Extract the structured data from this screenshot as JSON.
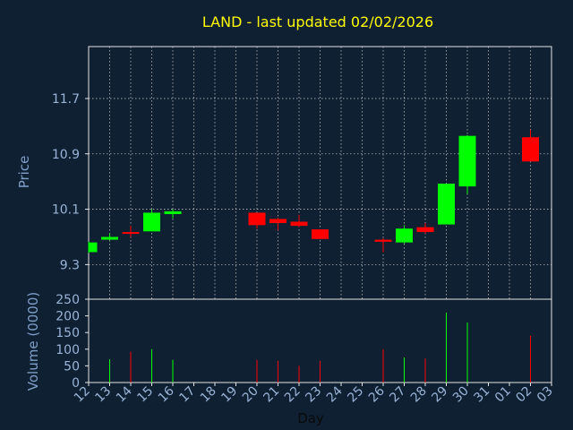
{
  "chart_data": {
    "type": "candlestick",
    "title": "LAND - last updated 02/02/2026",
    "xlabel": "Day",
    "price_panel": {
      "ylabel": "Price",
      "yticks": [
        9.3,
        10.1,
        10.9,
        11.7
      ],
      "ylim": [
        8.8,
        12.45
      ],
      "grid": true
    },
    "volume_panel": {
      "ylabel": "Volume (0000)",
      "yticks": [
        0,
        50,
        100,
        150,
        200,
        250
      ],
      "ylim": [
        0,
        250
      ],
      "grid": false
    },
    "x_ticks": [
      "12",
      "13",
      "14",
      "15",
      "16",
      "17",
      "18",
      "19",
      "20",
      "21",
      "22",
      "23",
      "24",
      "25",
      "26",
      "27",
      "28",
      "29",
      "30",
      "31",
      "01",
      "02",
      "03"
    ],
    "up_color": "#00ff00",
    "down_color": "#ff0000",
    "candles": [
      {
        "x": "12",
        "open": 9.48,
        "close": 9.62,
        "high": 9.63,
        "low": 9.47,
        "volume": 0
      },
      {
        "x": "13",
        "open": 9.66,
        "close": 9.7,
        "high": 9.75,
        "low": 9.65,
        "volume": 70
      },
      {
        "x": "14",
        "open": 9.77,
        "close": 9.75,
        "high": 9.86,
        "low": 9.7,
        "volume": 92
      },
      {
        "x": "15",
        "open": 9.78,
        "close": 10.05,
        "high": 10.1,
        "low": 9.78,
        "volume": 100
      },
      {
        "x": "16",
        "open": 10.03,
        "close": 10.07,
        "high": 10.1,
        "low": 9.97,
        "volume": 68
      },
      {
        "x": "20",
        "open": 10.05,
        "close": 9.87,
        "high": 10.05,
        "low": 9.82,
        "volume": 68
      },
      {
        "x": "21",
        "open": 9.96,
        "close": 9.9,
        "high": 9.98,
        "low": 9.8,
        "volume": 65
      },
      {
        "x": "22",
        "open": 9.92,
        "close": 9.86,
        "high": 10.02,
        "low": 9.84,
        "volume": 50
      },
      {
        "x": "23",
        "open": 9.81,
        "close": 9.67,
        "high": 9.81,
        "low": 9.67,
        "volume": 65
      },
      {
        "x": "26",
        "open": 9.66,
        "close": 9.63,
        "high": 9.68,
        "low": 9.48,
        "volume": 100
      },
      {
        "x": "27",
        "open": 9.62,
        "close": 9.82,
        "high": 9.87,
        "low": 9.6,
        "volume": 75
      },
      {
        "x": "28",
        "open": 9.84,
        "close": 9.77,
        "high": 9.9,
        "low": 9.75,
        "volume": 72
      },
      {
        "x": "29",
        "open": 9.88,
        "close": 10.47,
        "high": 10.47,
        "low": 9.88,
        "volume": 210
      },
      {
        "x": "30",
        "open": 10.43,
        "close": 11.16,
        "high": 11.17,
        "low": 10.32,
        "volume": 180
      },
      {
        "x": "02",
        "open": 11.14,
        "close": 10.79,
        "high": 11.25,
        "low": 10.79,
        "volume": 140
      }
    ]
  }
}
